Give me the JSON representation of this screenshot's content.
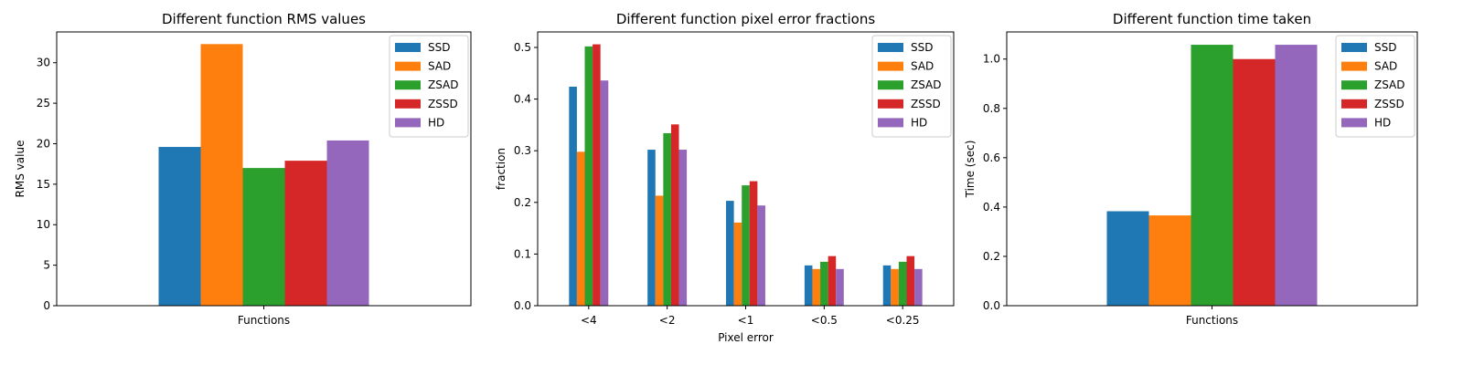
{
  "chart_data": [
    {
      "type": "bar",
      "title": "Different function RMS values",
      "xlabel": "",
      "ylabel": "RMS value",
      "categories": [
        "Functions"
      ],
      "ylim": [
        0,
        33.8
      ],
      "yticks": [
        0,
        5,
        10,
        15,
        20,
        25,
        30
      ],
      "series": [
        {
          "name": "SSD",
          "values": [
            19.6
          ]
        },
        {
          "name": "SAD",
          "values": [
            32.3
          ]
        },
        {
          "name": "ZSAD",
          "values": [
            17.0
          ]
        },
        {
          "name": "ZSSD",
          "values": [
            17.9
          ]
        },
        {
          "name": "HD",
          "values": [
            20.4
          ]
        }
      ],
      "legend": "top-right",
      "grid": false
    },
    {
      "type": "bar",
      "title": "Different function pixel error fractions",
      "xlabel": "Pixel error",
      "ylabel": "fraction",
      "categories": [
        "<4",
        "<2",
        "<1",
        "<0.5",
        "<0.25"
      ],
      "ylim": [
        0,
        0.53
      ],
      "yticks": [
        0.0,
        0.1,
        0.2,
        0.3,
        0.4,
        0.5
      ],
      "series": [
        {
          "name": "SSD",
          "values": [
            0.424,
            0.302,
            0.203,
            0.078,
            0.078
          ]
        },
        {
          "name": "SAD",
          "values": [
            0.298,
            0.213,
            0.161,
            0.071,
            0.071
          ]
        },
        {
          "name": "ZSAD",
          "values": [
            0.502,
            0.334,
            0.233,
            0.085,
            0.085
          ]
        },
        {
          "name": "ZSSD",
          "values": [
            0.506,
            0.351,
            0.241,
            0.096,
            0.096
          ]
        },
        {
          "name": "HD",
          "values": [
            0.436,
            0.302,
            0.194,
            0.071,
            0.071
          ]
        }
      ],
      "legend": "top-right",
      "grid": false
    },
    {
      "type": "bar",
      "title": "Different function time taken",
      "xlabel": "",
      "ylabel": "Time (sec)",
      "categories": [
        "Functions"
      ],
      "ylim": [
        0,
        1.11
      ],
      "yticks": [
        0.0,
        0.2,
        0.4,
        0.6,
        0.8,
        1.0
      ],
      "series": [
        {
          "name": "SSD",
          "values": [
            0.383
          ]
        },
        {
          "name": "SAD",
          "values": [
            0.366
          ]
        },
        {
          "name": "ZSAD",
          "values": [
            1.058
          ]
        },
        {
          "name": "ZSSD",
          "values": [
            1.0
          ]
        },
        {
          "name": "HD",
          "values": [
            1.058
          ]
        }
      ],
      "legend": "top-right",
      "grid": false
    }
  ],
  "colors": {
    "SSD": "#1f77b4",
    "SAD": "#ff7f0e",
    "ZSAD": "#2ca02c",
    "ZSSD": "#d62728",
    "HD": "#9467bd"
  }
}
